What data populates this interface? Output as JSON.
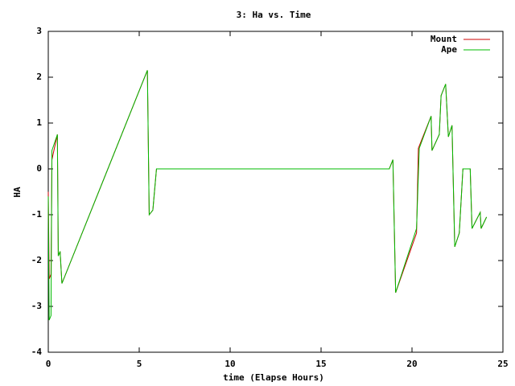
{
  "chart_data": {
    "type": "line",
    "title": "3: Ha vs. Time",
    "x_label": "time (Elapse Hours)",
    "y_label": "HA",
    "xlim": [
      0,
      25
    ],
    "xticks": [
      0,
      5,
      10,
      15,
      20,
      25
    ],
    "ylim": [
      -4,
      3
    ],
    "yticks": [
      -4,
      -3,
      -2,
      -1,
      0,
      1,
      2,
      3
    ],
    "legend": "top-right",
    "series": [
      {
        "name": "Mount",
        "color": "#cc0000",
        "x": [
          0,
          0.05,
          0.15,
          0.2,
          0.5,
          0.55,
          0.65,
          0.75,
          5.45,
          5.55,
          5.75,
          5.95,
          18.75,
          18.95,
          19.1,
          20.25,
          20.35,
          21.05,
          21.1,
          21.5,
          21.6,
          21.85,
          22.0,
          22.2,
          22.35,
          22.6,
          22.8,
          23.2,
          23.3,
          23.75,
          23.8,
          24.1
        ],
        "values": [
          -0.5,
          -2.4,
          -2.3,
          0.2,
          0.75,
          -1.9,
          -1.8,
          -2.5,
          2.15,
          -1.0,
          -0.9,
          0,
          0,
          0.2,
          -2.7,
          -1.4,
          0.45,
          1.15,
          0.4,
          0.75,
          1.6,
          1.85,
          0.7,
          0.95,
          -1.7,
          -1.4,
          0,
          0,
          -1.3,
          -0.95,
          -1.3,
          -1.05
        ]
      },
      {
        "name": "Ape",
        "color": "#00bb00",
        "x": [
          0,
          0.05,
          0.15,
          0.2,
          0.5,
          0.55,
          0.65,
          0.75,
          5.45,
          5.55,
          5.75,
          5.95,
          18.75,
          18.95,
          19.1,
          20.25,
          20.4,
          21.05,
          21.1,
          21.5,
          21.6,
          21.85,
          22.0,
          22.2,
          22.35,
          22.6,
          22.8,
          23.2,
          23.3,
          23.75,
          23.8,
          24.1
        ],
        "values": [
          -0.6,
          -3.3,
          -3.2,
          0.4,
          0.75,
          -1.9,
          -1.8,
          -2.5,
          2.15,
          -1.0,
          -0.9,
          0,
          0,
          0.2,
          -2.7,
          -1.3,
          0.45,
          1.15,
          0.4,
          0.75,
          1.6,
          1.85,
          0.7,
          0.95,
          -1.7,
          -1.4,
          0,
          0,
          -1.3,
          -0.95,
          -1.3,
          -1.05
        ]
      }
    ]
  }
}
